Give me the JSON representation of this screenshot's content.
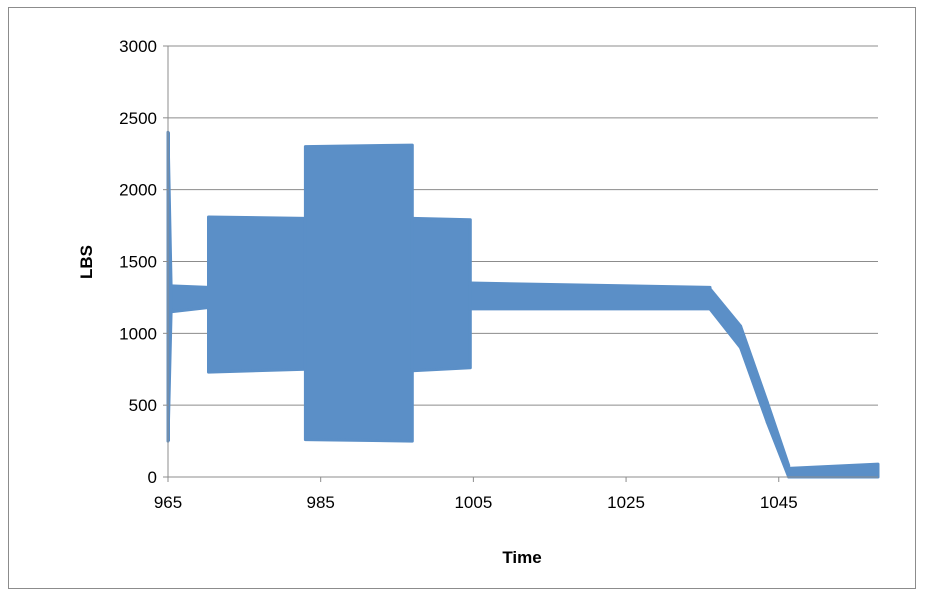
{
  "chart_data": {
    "type": "line",
    "xlabel": "Time",
    "ylabel": "LBS",
    "xlim": [
      965,
      1058
    ],
    "ylim": [
      0,
      3000
    ],
    "x_ticks": [
      "965",
      "985",
      "1005",
      "1025",
      "1045"
    ],
    "y_ticks": [
      "0",
      "500",
      "1000",
      "1500",
      "2000",
      "2500",
      "3000"
    ],
    "grid": "horizontal",
    "legend": "none",
    "color": "#5b8fc7",
    "series": [
      {
        "segments": [
          {
            "x": [
              965.0,
              965.4
            ],
            "low": [
              250,
              1150
            ],
            "high": [
              2400,
              1330
            ]
          },
          {
            "x": [
              965.4,
              970.3
            ],
            "low": [
              1150,
              1180
            ],
            "high": [
              1330,
              1320
            ]
          },
          {
            "x": [
              970.3,
              983.0
            ],
            "low": [
              730,
              750
            ],
            "high": [
              1810,
              1800
            ]
          },
          {
            "x": [
              983.0,
              997.0
            ],
            "low": [
              260,
              250
            ],
            "high": [
              2300,
              2310
            ]
          },
          {
            "x": [
              997.0,
              1004.6
            ],
            "low": [
              740,
              760
            ],
            "high": [
              1800,
              1790
            ]
          },
          {
            "x": [
              1004.6,
              1036.0
            ],
            "low": [
              1170,
              1170
            ],
            "high": [
              1350,
              1320
            ]
          },
          {
            "x": [
              1036.0,
              1040.0
            ],
            "low": [
              1170,
              900
            ],
            "high": [
              1310,
              1050
            ]
          },
          {
            "x": [
              1040.0,
              1043.5
            ],
            "low": [
              900,
              380
            ],
            "high": [
              1050,
              520
            ]
          },
          {
            "x": [
              1043.5,
              1046.3
            ],
            "low": [
              380,
              0
            ],
            "high": [
              520,
              80
            ]
          },
          {
            "x": [
              1046.3,
              1058.0
            ],
            "low": [
              0,
              0
            ],
            "high": [
              60,
              90
            ]
          }
        ]
      }
    ]
  }
}
